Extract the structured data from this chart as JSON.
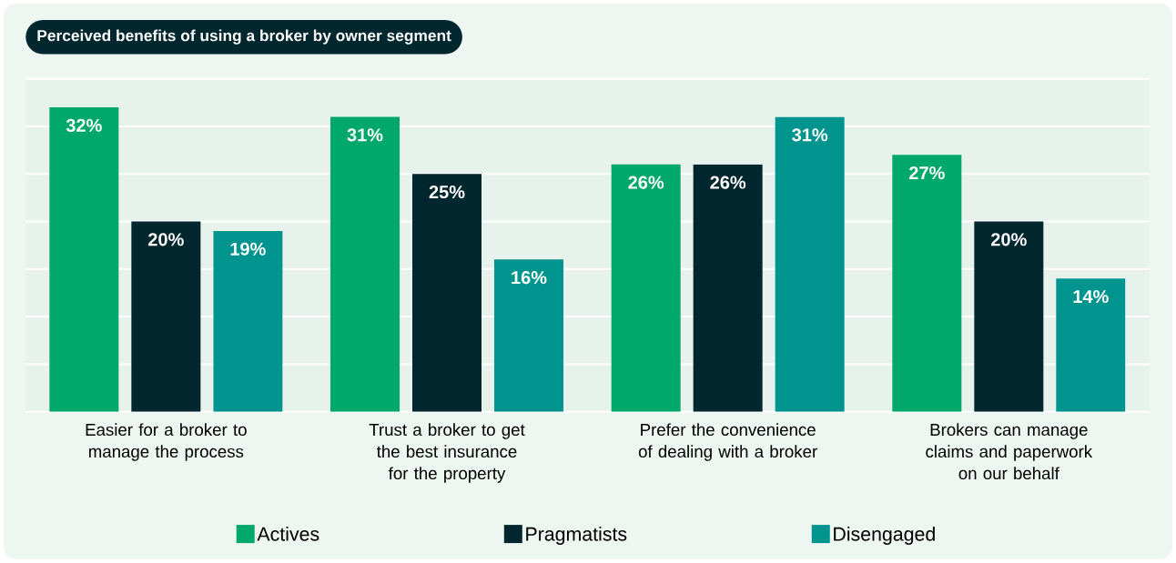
{
  "chart_data": {
    "type": "bar",
    "title": "Perceived benefits of using a broker by owner segment",
    "categories": [
      "Easier for a broker to manage the process",
      "Trust a broker to get the best insurance for the property",
      "Prefer the convenience of dealing with a broker",
      "Brokers can manage claims and paperwork on our behalf"
    ],
    "series": [
      {
        "name": "Actives",
        "color": "#00a86b",
        "values": [
          32,
          31,
          26,
          27
        ],
        "value_labels": [
          "32%",
          "31%",
          "26%",
          "27%"
        ]
      },
      {
        "name": "Pragmatists",
        "color": "#03272e",
        "values": [
          20,
          25,
          26,
          20
        ],
        "value_labels": [
          "20%",
          "25%",
          "26%",
          "20%"
        ]
      },
      {
        "name": "Disengaged",
        "color": "#00948f",
        "values": [
          19,
          16,
          31,
          14
        ],
        "value_labels": [
          "19%",
          "16%",
          "31%",
          "14%"
        ]
      }
    ],
    "ylim": [
      0,
      35
    ],
    "yticks": [
      {
        "value": 0,
        "label": null
      },
      {
        "value": 5,
        "label": null
      },
      {
        "value": 10,
        "label": null
      },
      {
        "value": 15,
        "label": null
      },
      {
        "value": 20,
        "label": null
      },
      {
        "value": 25,
        "label": null
      },
      {
        "value": 30,
        "label": null
      },
      {
        "value": 35,
        "label": null
      }
    ],
    "tick_labels": "x",
    "grid": "y",
    "legend": "bottom"
  }
}
